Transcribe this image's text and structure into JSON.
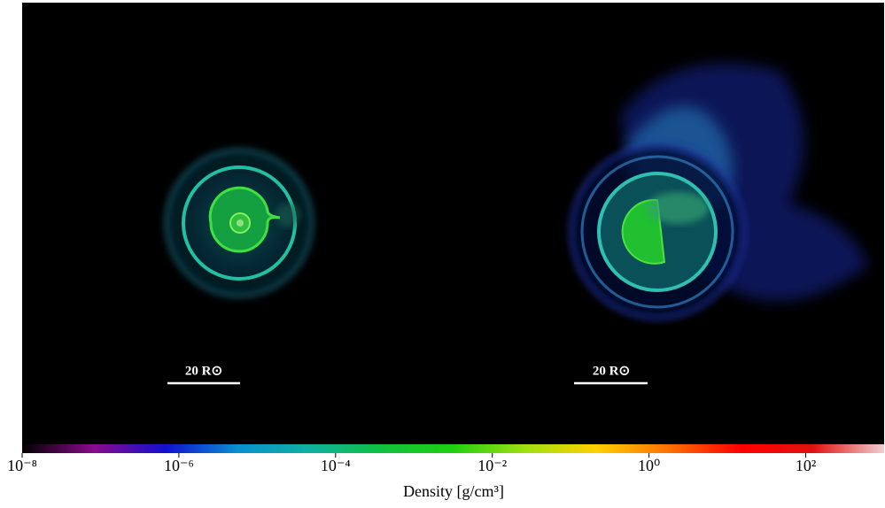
{
  "panels": [
    {
      "scale_label": "20 R⊙"
    },
    {
      "scale_label": "20 R⊙"
    }
  ],
  "colorbar": {
    "label": "Density [g/cm³]",
    "log_scale": true,
    "xlim": [
      1e-08,
      1000
    ],
    "colormap": [
      "#000000",
      "#8a0a8a",
      "#1010d0",
      "#0a8fd0",
      "#10b0a0",
      "#10c040",
      "#20d010",
      "#a0e010",
      "#ffd000",
      "#ff7000",
      "#ff0000",
      "#e01010",
      "#f0d0d0"
    ],
    "xticks": [
      {
        "value": 1e-08,
        "label": "10⁻⁸"
      },
      {
        "value": 1e-06,
        "label": "10⁻⁶"
      },
      {
        "value": 0.0001,
        "label": "10⁻⁴"
      },
      {
        "value": 0.01,
        "label": "10⁻²"
      },
      {
        "value": 1,
        "label": "10⁰"
      },
      {
        "value": 100,
        "label": "10²"
      }
    ]
  }
}
